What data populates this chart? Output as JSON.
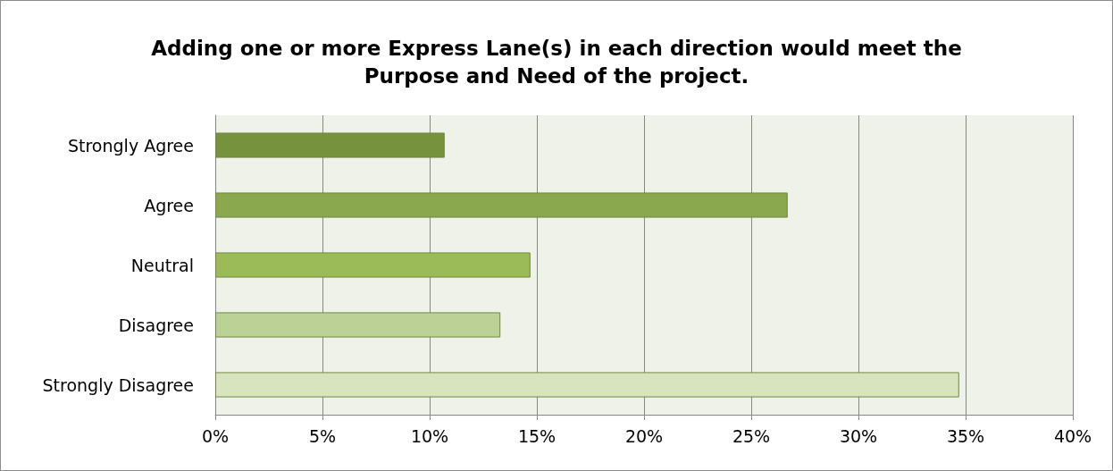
{
  "chart_data": {
    "type": "bar",
    "orientation": "horizontal",
    "title": "Adding one or more Express Lane(s) in each direction would meet the\nPurpose and Need of the project.",
    "categories": [
      "Strongly Agree",
      "Agree",
      "Neutral",
      "Disagree",
      "Strongly Disagree"
    ],
    "values": [
      10.7,
      26.7,
      14.7,
      13.3,
      34.7
    ],
    "colors": [
      "#76923c",
      "#8aa84d",
      "#9bbb59",
      "#bcd196",
      "#d7e4bd"
    ],
    "xlim": [
      0,
      40
    ],
    "xticks": [
      {
        "value": 0,
        "label": "0%"
      },
      {
        "value": 5,
        "label": "5%"
      },
      {
        "value": 10,
        "label": "10%"
      },
      {
        "value": 15,
        "label": "15%"
      },
      {
        "value": 20,
        "label": "20%"
      },
      {
        "value": 25,
        "label": "25%"
      },
      {
        "value": 30,
        "label": "30%"
      },
      {
        "value": 35,
        "label": "35%"
      },
      {
        "value": 40,
        "label": "40%"
      }
    ],
    "grid": "x"
  }
}
